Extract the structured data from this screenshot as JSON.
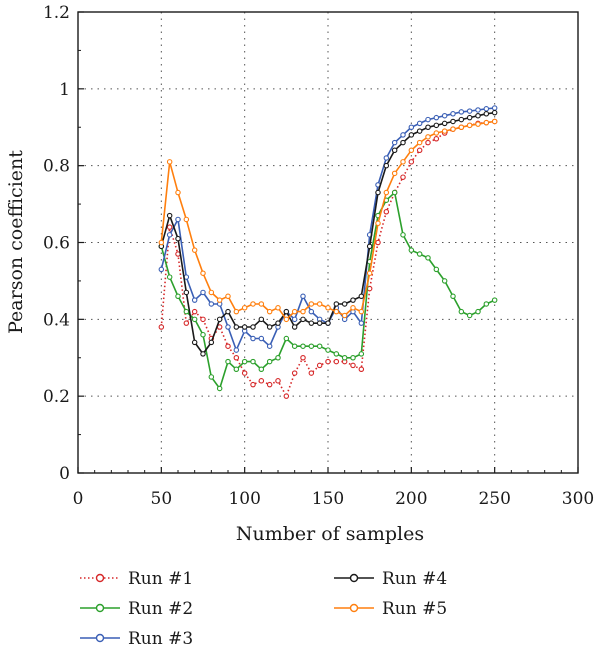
{
  "chart_data": {
    "type": "line",
    "title": "",
    "xlabel": "Number of samples",
    "ylabel": "Pearson coefficient",
    "xlim": [
      0,
      300
    ],
    "ylim": [
      0,
      1.2
    ],
    "xticks": [
      0,
      50,
      100,
      150,
      200,
      250,
      300
    ],
    "yticks": [
      0,
      0.2,
      0.4,
      0.6,
      0.8,
      1,
      1.2
    ],
    "xtick_labels": [
      "0",
      "50",
      "100",
      "150",
      "200",
      "250",
      "300"
    ],
    "ytick_labels": [
      "0",
      "0.2",
      "0.4",
      "0.6",
      "0.8",
      "1",
      "1.2"
    ],
    "grid": true,
    "legend_position": "bottom",
    "series": [
      {
        "name": "Run #1",
        "color": "#d62728",
        "line_style": "dotted",
        "x": [
          50,
          55,
          60,
          65,
          70,
          75,
          80,
          85,
          90,
          95,
          100,
          105,
          110,
          115,
          120,
          125,
          130,
          135,
          140,
          145,
          150,
          155,
          160,
          165,
          170,
          175,
          180,
          185,
          190,
          195,
          200,
          205,
          210,
          215,
          220,
          225,
          230,
          235,
          240,
          245,
          250
        ],
        "y": [
          0.38,
          0.64,
          0.57,
          0.39,
          0.42,
          0.4,
          0.35,
          0.38,
          0.33,
          0.3,
          0.26,
          0.23,
          0.24,
          0.23,
          0.24,
          0.2,
          0.26,
          0.3,
          0.26,
          0.28,
          0.29,
          0.29,
          0.29,
          0.28,
          0.27,
          0.48,
          0.6,
          0.68,
          0.73,
          0.77,
          0.81,
          0.84,
          0.86,
          0.87,
          0.885,
          0.895,
          0.9,
          0.905,
          0.91,
          0.912,
          0.915
        ]
      },
      {
        "name": "Run #2",
        "color": "#2ca02c",
        "line_style": "solid",
        "x": [
          50,
          55,
          60,
          65,
          70,
          75,
          80,
          85,
          90,
          95,
          100,
          105,
          110,
          115,
          120,
          125,
          130,
          135,
          140,
          145,
          150,
          155,
          160,
          165,
          170,
          175,
          180,
          185,
          190,
          195,
          200,
          205,
          210,
          215,
          220,
          225,
          230,
          235,
          240,
          245,
          250
        ],
        "y": [
          0.59,
          0.51,
          0.46,
          0.42,
          0.4,
          0.36,
          0.25,
          0.22,
          0.29,
          0.27,
          0.29,
          0.29,
          0.27,
          0.29,
          0.3,
          0.35,
          0.33,
          0.33,
          0.33,
          0.33,
          0.32,
          0.31,
          0.3,
          0.3,
          0.31,
          0.55,
          0.67,
          0.71,
          0.73,
          0.62,
          0.58,
          0.57,
          0.56,
          0.53,
          0.5,
          0.46,
          0.42,
          0.41,
          0.42,
          0.44,
          0.45
        ]
      },
      {
        "name": "Run #3",
        "color": "#3a5fb5",
        "line_style": "solid",
        "x": [
          50,
          55,
          60,
          65,
          70,
          75,
          80,
          85,
          90,
          95,
          100,
          105,
          110,
          115,
          120,
          125,
          130,
          135,
          140,
          145,
          150,
          155,
          160,
          165,
          170,
          175,
          180,
          185,
          190,
          195,
          200,
          205,
          210,
          215,
          220,
          225,
          230,
          235,
          240,
          245,
          250
        ],
        "y": [
          0.53,
          0.62,
          0.66,
          0.51,
          0.45,
          0.47,
          0.44,
          0.44,
          0.38,
          0.32,
          0.37,
          0.35,
          0.35,
          0.33,
          0.38,
          0.42,
          0.4,
          0.46,
          0.42,
          0.4,
          0.39,
          0.43,
          0.4,
          0.42,
          0.39,
          0.62,
          0.75,
          0.82,
          0.86,
          0.88,
          0.9,
          0.91,
          0.92,
          0.925,
          0.93,
          0.935,
          0.94,
          0.942,
          0.945,
          0.948,
          0.95
        ]
      },
      {
        "name": "Run #4",
        "color": "#1a1a1a",
        "line_style": "solid",
        "x": [
          50,
          55,
          60,
          65,
          70,
          75,
          80,
          85,
          90,
          95,
          100,
          105,
          110,
          115,
          120,
          125,
          130,
          135,
          140,
          145,
          150,
          155,
          160,
          165,
          170,
          175,
          180,
          185,
          190,
          195,
          200,
          205,
          210,
          215,
          220,
          225,
          230,
          235,
          240,
          245,
          250
        ],
        "y": [
          0.59,
          0.67,
          0.61,
          0.47,
          0.34,
          0.31,
          0.34,
          0.4,
          0.42,
          0.38,
          0.38,
          0.38,
          0.4,
          0.38,
          0.39,
          0.42,
          0.38,
          0.4,
          0.39,
          0.39,
          0.39,
          0.44,
          0.44,
          0.45,
          0.46,
          0.59,
          0.73,
          0.8,
          0.84,
          0.86,
          0.88,
          0.89,
          0.9,
          0.905,
          0.91,
          0.915,
          0.92,
          0.925,
          0.93,
          0.935,
          0.938
        ]
      },
      {
        "name": "Run #5",
        "color": "#ff7f0e",
        "line_style": "solid",
        "x": [
          50,
          55,
          60,
          65,
          70,
          75,
          80,
          85,
          90,
          95,
          100,
          105,
          110,
          115,
          120,
          125,
          130,
          135,
          140,
          145,
          150,
          155,
          160,
          165,
          170,
          175,
          180,
          185,
          190,
          195,
          200,
          205,
          210,
          215,
          220,
          225,
          230,
          235,
          240,
          245,
          250
        ],
        "y": [
          0.6,
          0.81,
          0.73,
          0.66,
          0.58,
          0.52,
          0.47,
          0.45,
          0.46,
          0.42,
          0.43,
          0.44,
          0.44,
          0.42,
          0.43,
          0.4,
          0.42,
          0.42,
          0.44,
          0.44,
          0.43,
          0.42,
          0.41,
          0.43,
          0.42,
          0.52,
          0.65,
          0.73,
          0.78,
          0.81,
          0.84,
          0.86,
          0.875,
          0.885,
          0.89,
          0.895,
          0.9,
          0.905,
          0.908,
          0.912,
          0.915
        ]
      }
    ]
  }
}
